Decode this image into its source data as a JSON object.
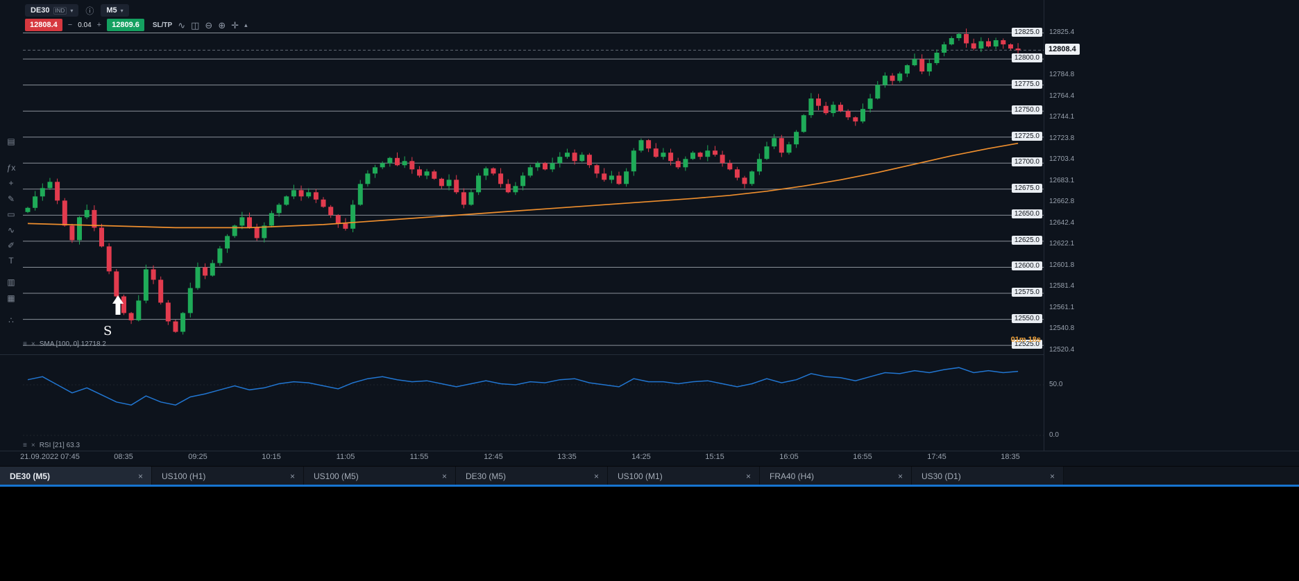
{
  "topbar": {
    "symbol": "DE30",
    "symbol_type": "IND",
    "timeframe": "M5",
    "sell_price": "12808.4",
    "spread": "0.04",
    "buy_price": "12809.6",
    "sltp_label": "SL/TP"
  },
  "icons": {
    "caret_down": "▾",
    "caret_up": "▴",
    "info": "ⓘ",
    "minus": "−",
    "plus": "+",
    "trend_line": "∿",
    "candle_style": "◫",
    "zoom_out": "⊖",
    "zoom_in": "⊕",
    "move_crosshair": "✛",
    "legend_menu": "≡",
    "legend_close": "×",
    "tab_close": "×"
  },
  "left_toolbar": [
    {
      "name": "layout-icon",
      "glyph": "▤"
    },
    {
      "name": "fx-indicator-icon",
      "glyph": "ƒx"
    },
    {
      "name": "add-icon",
      "glyph": "+"
    },
    {
      "name": "pencil-icon",
      "glyph": "✎"
    },
    {
      "name": "rectangle-tool-icon",
      "glyph": "▭"
    },
    {
      "name": "zigzag-tool-icon",
      "glyph": "∿"
    },
    {
      "name": "brush-tool-icon",
      "glyph": "✐"
    },
    {
      "name": "text-tool-icon",
      "glyph": "T"
    },
    {
      "name": "bars-icon",
      "glyph": "▥"
    },
    {
      "name": "layers-icon",
      "glyph": "▦"
    },
    {
      "name": "share-icon",
      "glyph": "∴"
    }
  ],
  "legend": {
    "sma_text": "SMA [100, 0] 12718.2",
    "rsi_text": "RSI [21] 63.3"
  },
  "countdown": "01m 18s",
  "annotation": {
    "signal_label": "S"
  },
  "axis": {
    "current_price": "12808.4",
    "price_ticks": [
      "12825.4",
      "12784.8",
      "12764.4",
      "12744.1",
      "12723.8",
      "12703.4",
      "12683.1",
      "12662.8",
      "12642.4",
      "12622.1",
      "12601.8",
      "12581.4",
      "12561.1",
      "12540.8",
      "12520.4"
    ],
    "levels": [
      "12825.0",
      "12800.0",
      "12775.0",
      "12750.0",
      "12725.0",
      "12700.0",
      "12675.0",
      "12650.0",
      "12625.0",
      "12600.0",
      "12575.0",
      "12550.0",
      "12525.0"
    ],
    "time_labels": [
      {
        "index": 3,
        "label": "21.09.2022 07:45"
      },
      {
        "index": 13,
        "label": "08:35"
      },
      {
        "index": 23,
        "label": "09:25"
      },
      {
        "index": 33,
        "label": "10:15"
      },
      {
        "index": 43,
        "label": "11:05"
      },
      {
        "index": 53,
        "label": "11:55"
      },
      {
        "index": 63,
        "label": "12:45"
      },
      {
        "index": 73,
        "label": "13:35"
      },
      {
        "index": 83,
        "label": "14:25"
      },
      {
        "index": 93,
        "label": "15:15"
      },
      {
        "index": 103,
        "label": "16:05"
      },
      {
        "index": 113,
        "label": "16:55"
      },
      {
        "index": 123,
        "label": "17:45"
      },
      {
        "index": 133,
        "label": "18:35"
      }
    ],
    "rsi_ticks": [
      {
        "label": "50.0",
        "value": 50
      },
      {
        "label": "0.0",
        "value": 0
      }
    ]
  },
  "chart_data": {
    "type": "candlestick",
    "symbol": "DE30",
    "timeframe": "M5",
    "session_date": "21.09.2022",
    "current_price": 12808.4,
    "price_series": {
      "start_time": "07:30",
      "interval_min": 5,
      "closes": [
        12657,
        12668,
        12676,
        12682,
        12664,
        12640,
        12626,
        12648,
        12655,
        12638,
        12620,
        12596,
        12572,
        12556,
        12549,
        12568,
        12598,
        12588,
        12566,
        12548,
        12538,
        12556,
        12580,
        12600,
        12592,
        12604,
        12618,
        12630,
        12640,
        12648,
        12638,
        12628,
        12640,
        12652,
        12660,
        12668,
        12674,
        12668,
        12672,
        12665,
        12658,
        12650,
        12642,
        12637,
        12660,
        12680,
        12690,
        12696,
        12700,
        12705,
        12698,
        12702,
        12694,
        12688,
        12692,
        12685,
        12678,
        12684,
        12672,
        12660,
        12672,
        12688,
        12695,
        12690,
        12680,
        12672,
        12678,
        12688,
        12696,
        12700,
        12694,
        12700,
        12706,
        12710,
        12702,
        12708,
        12698,
        12690,
        12684,
        12688,
        12680,
        12692,
        12712,
        12722,
        12714,
        12706,
        12710,
        12702,
        12696,
        12704,
        12710,
        12706,
        12712,
        12708,
        12700,
        12694,
        12686,
        12680,
        12692,
        12704,
        12716,
        12724,
        12710,
        12718,
        12730,
        12746,
        12762,
        12755,
        12748,
        12756,
        12750,
        12744,
        12740,
        12752,
        12762,
        12775,
        12784,
        12779,
        12786,
        12794,
        12800,
        12788,
        12796,
        12806,
        12814,
        12820,
        12824,
        12815,
        12810,
        12817,
        12812,
        12818,
        12814,
        12810,
        12808.4
      ]
    },
    "sma_100": {
      "last_value": 12718.2,
      "points": [
        [
          0,
          12642
        ],
        [
          10,
          12640
        ],
        [
          20,
          12638
        ],
        [
          30,
          12638
        ],
        [
          40,
          12641
        ],
        [
          50,
          12646
        ],
        [
          60,
          12651
        ],
        [
          70,
          12656
        ],
        [
          80,
          12661
        ],
        [
          90,
          12666
        ],
        [
          95,
          12669
        ],
        [
          100,
          12673
        ],
        [
          105,
          12678
        ],
        [
          110,
          12684
        ],
        [
          115,
          12691
        ],
        [
          120,
          12699
        ],
        [
          125,
          12707
        ],
        [
          130,
          12714
        ],
        [
          134,
          12719
        ]
      ]
    },
    "rsi_21": {
      "period": 21,
      "last_value": 63.3,
      "points": [
        [
          0,
          55
        ],
        [
          2,
          58
        ],
        [
          4,
          50
        ],
        [
          6,
          42
        ],
        [
          8,
          47
        ],
        [
          10,
          40
        ],
        [
          12,
          33
        ],
        [
          14,
          30
        ],
        [
          16,
          39
        ],
        [
          18,
          33
        ],
        [
          20,
          30
        ],
        [
          22,
          38
        ],
        [
          24,
          41
        ],
        [
          26,
          45
        ],
        [
          28,
          49
        ],
        [
          30,
          45
        ],
        [
          32,
          47
        ],
        [
          34,
          51
        ],
        [
          36,
          53
        ],
        [
          38,
          52
        ],
        [
          40,
          49
        ],
        [
          42,
          46
        ],
        [
          44,
          52
        ],
        [
          46,
          56
        ],
        [
          48,
          58
        ],
        [
          50,
          55
        ],
        [
          52,
          53
        ],
        [
          54,
          54
        ],
        [
          56,
          51
        ],
        [
          58,
          48
        ],
        [
          60,
          51
        ],
        [
          62,
          54
        ],
        [
          64,
          51
        ],
        [
          66,
          50
        ],
        [
          68,
          53
        ],
        [
          70,
          52
        ],
        [
          72,
          55
        ],
        [
          74,
          56
        ],
        [
          76,
          52
        ],
        [
          78,
          50
        ],
        [
          80,
          48
        ],
        [
          82,
          56
        ],
        [
          84,
          53
        ],
        [
          86,
          53
        ],
        [
          88,
          51
        ],
        [
          90,
          53
        ],
        [
          92,
          54
        ],
        [
          94,
          51
        ],
        [
          96,
          48
        ],
        [
          98,
          51
        ],
        [
          100,
          56
        ],
        [
          102,
          52
        ],
        [
          104,
          55
        ],
        [
          106,
          61
        ],
        [
          108,
          58
        ],
        [
          110,
          57
        ],
        [
          112,
          54
        ],
        [
          114,
          58
        ],
        [
          116,
          62
        ],
        [
          118,
          61
        ],
        [
          120,
          64
        ],
        [
          122,
          62
        ],
        [
          124,
          65
        ],
        [
          126,
          67
        ],
        [
          128,
          62
        ],
        [
          130,
          64
        ],
        [
          132,
          62
        ],
        [
          134,
          63.3
        ]
      ]
    },
    "round_levels": [
      12825,
      12800,
      12775,
      12750,
      12725,
      12700,
      12675,
      12650,
      12625,
      12600,
      12575,
      12550,
      12525
    ]
  },
  "tabs": [
    {
      "label": "DE30 (M5)",
      "active": true
    },
    {
      "label": "US100 (H1)",
      "active": false
    },
    {
      "label": "US100 (M5)",
      "active": false
    },
    {
      "label": "DE30 (M5)",
      "active": false
    },
    {
      "label": "US100 (M1)",
      "active": false
    },
    {
      "label": "FRA40 (H4)",
      "active": false
    },
    {
      "label": "US30 (D1)",
      "active": false
    }
  ],
  "colors": {
    "up": "#1fab58",
    "down": "#e23b4e",
    "sell_badge": "#d6383f",
    "buy_badge": "#14a060",
    "sma": "#ef8f2e",
    "rsi": "#2176d2",
    "grid_level": "#cfd6de",
    "countdown": "#f0a33c",
    "accent_blue": "#1774d0"
  }
}
